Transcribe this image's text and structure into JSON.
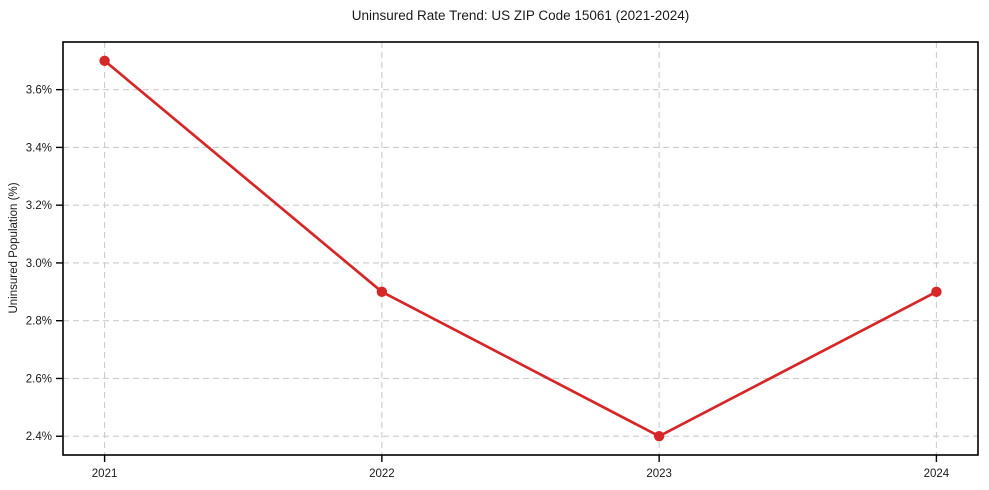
{
  "chart_data": {
    "type": "line",
    "title": "Uninsured Rate Trend: US ZIP Code 15061 (2021-2024)",
    "xlabel": "",
    "ylabel": "Uninsured Population (%)",
    "x": [
      2021,
      2022,
      2023,
      2024
    ],
    "values": [
      3.7,
      2.9,
      2.4,
      2.9
    ],
    "xticks": {
      "values": [
        2021,
        2022,
        2023,
        2024
      ],
      "labels": [
        "2021",
        "2022",
        "2023",
        "2024"
      ]
    },
    "yticks": {
      "values": [
        2.4,
        2.6,
        2.8,
        3.0,
        3.2,
        3.4,
        3.6
      ],
      "labels": [
        "2.4%",
        "2.6%",
        "2.8%",
        "3.0%",
        "3.2%",
        "3.4%",
        "3.6%"
      ]
    },
    "xlim": [
      2020.85,
      2024.15
    ],
    "ylim": [
      2.335,
      3.765
    ],
    "grid": true,
    "grid_style": "dashed",
    "legend": "none",
    "colors": {
      "line": "#d62728",
      "marker": "#d62728",
      "grid": "#cccccc",
      "axis": "#000000",
      "text": "#1a1a1a"
    }
  }
}
